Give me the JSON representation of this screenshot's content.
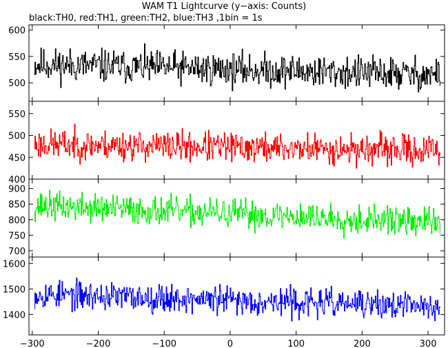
{
  "title": "WAM T1 Lightcurve (y−axis: Counts)",
  "subtitle": "black:TH0, red:TH1, green:TH2, blue:TH3 ,1bin = 1s",
  "chart_data": {
    "type": "line",
    "xlim": [
      -305,
      325
    ],
    "x_start": -297,
    "x_end": 318,
    "x_step": 1,
    "x_ticks": [
      -300,
      -200,
      -100,
      0,
      100,
      200,
      300
    ],
    "x_tick_labels": [
      "−300",
      "−200",
      "−100",
      "0",
      "100",
      "200",
      "300"
    ],
    "panels": [
      {
        "name": "TH0",
        "color": "#000000",
        "ylim": [
          465,
          610
        ],
        "y_ticks": [
          500,
          550,
          600
        ],
        "mean_start": 535,
        "mean_end": 515,
        "noise": 24,
        "seed": 11
      },
      {
        "name": "TH1",
        "color": "#ff0000",
        "ylim": [
          400,
          578
        ],
        "y_ticks": [
          400,
          450,
          500,
          550
        ],
        "mean_start": 480,
        "mean_end": 465,
        "noise": 26,
        "seed": 23
      },
      {
        "name": "TH2",
        "color": "#00ee00",
        "ylim": [
          680,
          930
        ],
        "y_ticks": [
          700,
          750,
          800,
          850,
          900
        ],
        "mean_start": 845,
        "mean_end": 790,
        "noise": 35,
        "seed": 37
      },
      {
        "name": "TH3",
        "color": "#0000ff",
        "ylim": [
          1320,
          1625
        ],
        "y_ticks": [
          1400,
          1500,
          1600
        ],
        "mean_start": 1480,
        "mean_end": 1430,
        "noise": 42,
        "seed": 53
      }
    ]
  }
}
